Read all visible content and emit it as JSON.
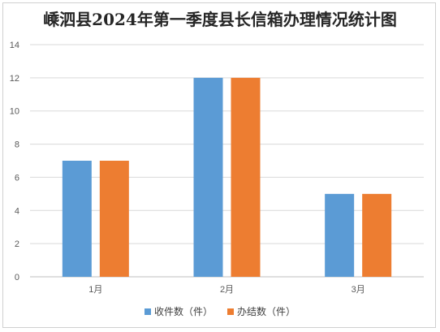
{
  "chart_data": {
    "type": "bar",
    "title": "嵊泗县2024年第一季度县长信箱办理情况统计图",
    "categories": [
      "1月",
      "2月",
      "3月"
    ],
    "series": [
      {
        "name": "收件数（件）",
        "values": [
          7,
          12,
          5
        ],
        "color": "#5B9BD5"
      },
      {
        "name": "办结数（件）",
        "values": [
          7,
          12,
          5
        ],
        "color": "#ED7D31"
      }
    ],
    "ylim": [
      0,
      14
    ],
    "yticks": [
      0,
      2,
      4,
      6,
      8,
      10,
      12,
      14
    ],
    "grid": true,
    "legend_position": "bottom"
  }
}
